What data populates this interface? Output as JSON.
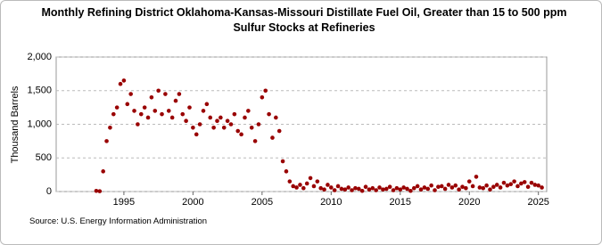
{
  "chart_data": {
    "type": "scatter",
    "title": "Monthly Refining District Oklahoma-Kansas-Missouri Distillate Fuel Oil, Greater than 15 to 500 ppm Sulfur Stocks at Refineries",
    "y_label": "Thousand Barrels",
    "source": "Source: U.S. Energy Information Administration",
    "color": "#990000",
    "grid": true,
    "xlim": [
      1990.1,
      2025.6
    ],
    "xticks": [
      1995,
      2000,
      2005,
      2010,
      2015,
      2020,
      2025
    ],
    "ylim": [
      0,
      2000
    ],
    "yticks": [
      0,
      500,
      {
        "value": 1000,
        "label": "1,000"
      },
      {
        "value": 1500,
        "label": "1,500"
      },
      {
        "value": 2000,
        "label": "2,000"
      }
    ],
    "x": [
      1993,
      1993.25,
      1993.5,
      1993.75,
      1994,
      1994.25,
      1994.5,
      1994.75,
      1995,
      1995.25,
      1995.5,
      1995.75,
      1996,
      1996.25,
      1996.5,
      1996.75,
      1997,
      1997.25,
      1997.5,
      1997.75,
      1998,
      1998.25,
      1998.5,
      1998.75,
      1999,
      1999.25,
      1999.5,
      1999.75,
      2000,
      2000.25,
      2000.5,
      2000.75,
      2001,
      2001.25,
      2001.5,
      2001.75,
      2002,
      2002.25,
      2002.5,
      2002.75,
      2003,
      2003.25,
      2003.5,
      2003.75,
      2004,
      2004.25,
      2004.5,
      2004.75,
      2005,
      2005.25,
      2005.5,
      2005.75,
      2006,
      2006.25,
      2006.5,
      2006.75,
      2007,
      2007.25,
      2007.5,
      2007.75,
      2008,
      2008.25,
      2008.5,
      2008.75,
      2009,
      2009.25,
      2009.5,
      2009.75,
      2010,
      2010.25,
      2010.5,
      2010.75,
      2011,
      2011.25,
      2011.5,
      2011.75,
      2012,
      2012.25,
      2012.5,
      2012.75,
      2013,
      2013.25,
      2013.5,
      2013.75,
      2014,
      2014.25,
      2014.5,
      2014.75,
      2015,
      2015.25,
      2015.5,
      2015.75,
      2016,
      2016.25,
      2016.5,
      2016.75,
      2017,
      2017.25,
      2017.5,
      2017.75,
      2018,
      2018.25,
      2018.5,
      2018.75,
      2019,
      2019.25,
      2019.5,
      2019.75,
      2020,
      2020.25,
      2020.5,
      2020.75,
      2021,
      2021.25,
      2021.5,
      2021.75,
      2022,
      2022.25,
      2022.5,
      2022.75,
      2023,
      2023.25,
      2023.5,
      2023.75,
      2024,
      2024.25,
      2024.5,
      2024.75,
      2025,
      2025.25
    ],
    "values": [
      10,
      5,
      300,
      750,
      950,
      1150,
      1250,
      1600,
      1650,
      1300,
      1450,
      1200,
      1000,
      1150,
      1250,
      1100,
      1400,
      1200,
      1500,
      1150,
      1450,
      1200,
      1100,
      1350,
      1450,
      1150,
      1050,
      1250,
      950,
      850,
      1000,
      1200,
      1300,
      1100,
      950,
      1050,
      1100,
      950,
      1050,
      1000,
      1150,
      900,
      850,
      1100,
      1200,
      950,
      750,
      1000,
      1400,
      1500,
      1150,
      800,
      1100,
      900,
      450,
      300,
      150,
      80,
      60,
      100,
      50,
      120,
      200,
      80,
      150,
      50,
      30,
      100,
      60,
      20,
      80,
      40,
      30,
      60,
      20,
      50,
      40,
      10,
      70,
      30,
      50,
      20,
      60,
      30,
      40,
      70,
      20,
      50,
      30,
      60,
      40,
      10,
      50,
      80,
      30,
      60,
      40,
      90,
      20,
      70,
      80,
      40,
      100,
      60,
      90,
      30,
      70,
      50,
      150,
      80,
      220,
      60,
      50,
      90,
      30,
      70,
      100,
      60,
      130,
      90,
      110,
      150,
      80,
      120,
      140,
      70,
      130,
      100,
      90,
      60
    ]
  }
}
